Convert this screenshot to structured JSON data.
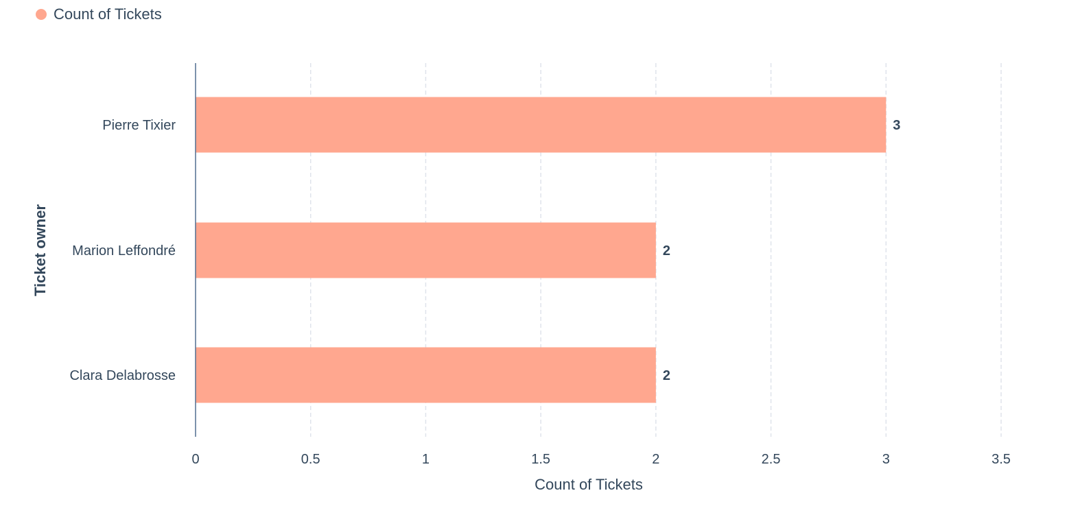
{
  "legend": {
    "label": "Count of Tickets",
    "color": "#ffa78f"
  },
  "chart_data": {
    "type": "bar",
    "orientation": "horizontal",
    "categories": [
      "Pierre Tixier",
      "Marion Leffondré",
      "Clara Delabrosse"
    ],
    "series": [
      {
        "name": "Count of Tickets",
        "values": [
          3,
          2,
          2
        ],
        "color": "#ffa78f"
      }
    ],
    "data_labels": [
      "3",
      "2",
      "2"
    ],
    "xlabel": "Count of Tickets",
    "ylabel": "Ticket owner",
    "xlim": [
      0,
      3.5
    ],
    "xticks": [
      0,
      0.5,
      1,
      1.5,
      2,
      2.5,
      3,
      3.5
    ],
    "xtick_labels": [
      "0",
      "0.5",
      "1",
      "1.5",
      "2",
      "2.5",
      "3",
      "3.5"
    ],
    "grid": true,
    "legend_position": "top-left"
  }
}
